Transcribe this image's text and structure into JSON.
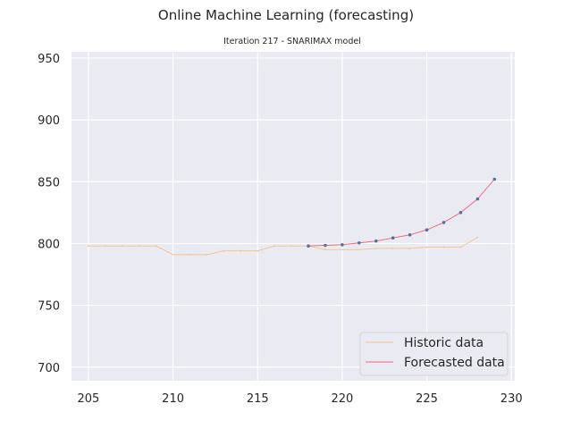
{
  "chart_data": {
    "type": "line",
    "title": "Online Machine Learning (forecasting)",
    "subtitle": "Iteration 217 - SNARIMAX model",
    "xlabel": "",
    "ylabel": "",
    "xlim": [
      204,
      230.2
    ],
    "ylim": [
      689,
      955
    ],
    "xticks": [
      205,
      210,
      215,
      220,
      225,
      230
    ],
    "yticks": [
      700,
      750,
      800,
      850,
      900,
      950
    ],
    "grid": true,
    "legend_position": "lower-right",
    "series": [
      {
        "name": "Historic data",
        "color": "#f5c08a",
        "x": [
          205,
          206,
          207,
          208,
          209,
          210,
          211,
          212,
          213,
          214,
          215,
          216,
          217,
          218,
          219,
          220,
          221,
          222,
          223,
          224,
          225,
          226,
          227,
          228
        ],
        "y": [
          798,
          798,
          798,
          798,
          798,
          791,
          791,
          791,
          794,
          794,
          794,
          798,
          798,
          798,
          795,
          795,
          795,
          796,
          796,
          796,
          797,
          797,
          797,
          805
        ]
      },
      {
        "name": "Forecasted data",
        "color": "#ee6677",
        "marker_color": "#5a6fa0",
        "x": [
          218,
          219,
          220,
          221,
          222,
          223,
          224,
          225,
          226,
          227,
          228,
          229
        ],
        "y": [
          798,
          798.5,
          799,
          800.5,
          802,
          804.5,
          807,
          811,
          817,
          825,
          836,
          852
        ]
      }
    ]
  }
}
